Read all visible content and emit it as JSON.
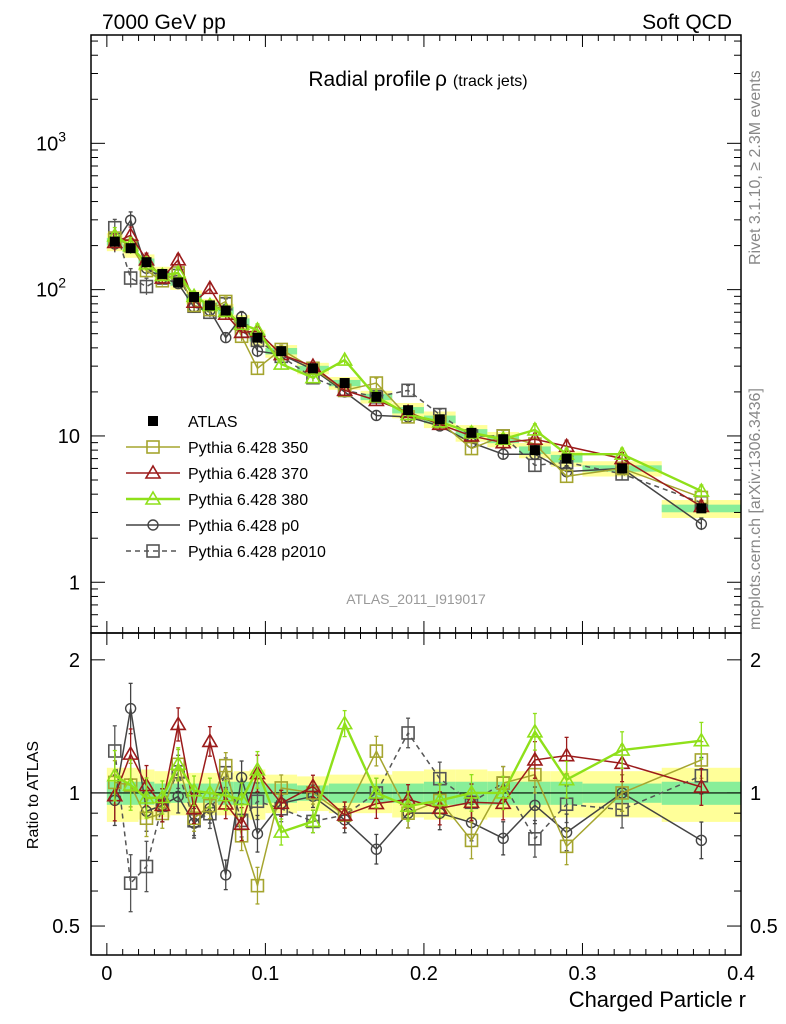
{
  "header": {
    "left": "7000 GeV pp",
    "right": "Soft QCD"
  },
  "side_labels": {
    "rivet": "Rivet 3.1.10, ≥ 2.3M events",
    "site": "mcplots.cern.ch [arXiv:1306.3436]"
  },
  "chart_data": {
    "type": "line",
    "title_main": "Radial profile",
    "title_symbol": "ρ",
    "title_sub": "(track jets)",
    "analysis_label": "ATLAS_2011_I919017",
    "xlabel": "Charged Particle r",
    "ylabel_ratio": "Ratio to ATLAS",
    "xlim": [
      -0.01,
      0.4
    ],
    "ylim_main": [
      0.45,
      5500
    ],
    "yscale_main": "log",
    "ylim_ratio": [
      0.43,
      2.3
    ],
    "yscale_ratio": "log",
    "x_ticks": [
      {
        "value": 0,
        "label": "0"
      },
      {
        "value": 0.1,
        "label": "0.1"
      },
      {
        "value": 0.2,
        "label": "0.2"
      },
      {
        "value": 0.3,
        "label": "0.3"
      },
      {
        "value": 0.4,
        "label": "0.4"
      }
    ],
    "y_ticks_main": [
      {
        "value": 1,
        "label": "1"
      },
      {
        "value": 10,
        "label": "10"
      },
      {
        "value": 100,
        "label": "10",
        "exp": "2"
      },
      {
        "value": 1000,
        "label": "10",
        "exp": "3"
      }
    ],
    "y_ticks_ratio": [
      {
        "value": 0.5,
        "label": "0.5"
      },
      {
        "value": 1,
        "label": "1"
      },
      {
        "value": 2,
        "label": "2"
      }
    ],
    "legend_position": "center-left",
    "x": [
      0.005,
      0.015,
      0.025,
      0.035,
      0.045,
      0.055,
      0.065,
      0.075,
      0.085,
      0.095,
      0.11,
      0.13,
      0.15,
      0.17,
      0.19,
      0.21,
      0.23,
      0.25,
      0.27,
      0.29,
      0.325,
      0.375
    ],
    "bin_edges": [
      0,
      0.01,
      0.02,
      0.03,
      0.04,
      0.05,
      0.06,
      0.07,
      0.08,
      0.09,
      0.1,
      0.12,
      0.14,
      0.16,
      0.18,
      0.2,
      0.22,
      0.24,
      0.26,
      0.28,
      0.3,
      0.35,
      0.4
    ],
    "band_inner": [
      0.06,
      0.06,
      0.06,
      0.05,
      0.05,
      0.05,
      0.05,
      0.06,
      0.06,
      0.06,
      0.05,
      0.04,
      0.05,
      0.05,
      0.05,
      0.06,
      0.06,
      0.06,
      0.06,
      0.06,
      0.05,
      0.06
    ],
    "band_outer": [
      0.14,
      0.14,
      0.13,
      0.12,
      0.11,
      0.11,
      0.11,
      0.11,
      0.12,
      0.13,
      0.1,
      0.09,
      0.1,
      0.1,
      0.12,
      0.13,
      0.13,
      0.12,
      0.12,
      0.12,
      0.12,
      0.14
    ],
    "series": [
      {
        "name": "ATLAS",
        "color": "#000000",
        "marker": "filled-square",
        "line": "none",
        "values": [
          213,
          192,
          154,
          128,
          112,
          89,
          78,
          72,
          60,
          47,
          38,
          29,
          23,
          18.5,
          15,
          13,
          10.5,
          9.5,
          8,
          7,
          6,
          3.2
        ]
      },
      {
        "name": "Pythia 6.428 350",
        "color": "#a5a52f",
        "marker": "open-square",
        "line": "solid",
        "values": [
          225,
          200,
          135,
          115,
          130,
          78,
          73,
          83,
          48,
          29,
          39,
          29,
          20.5,
          23,
          13.5,
          12.5,
          8.2,
          10,
          8.8,
          5.3,
          6,
          3.8
        ],
        "errors": [
          0.12,
          0.12,
          0.1,
          0.08,
          0.08,
          0.07,
          0.07,
          0.07,
          0.08,
          0.1,
          0.07,
          0.06,
          0.07,
          0.08,
          0.08,
          0.09,
          0.1,
          0.09,
          0.1,
          0.1,
          0.1,
          0.1
        ]
      },
      {
        "name": "Pythia 6.428 370",
        "color": "#9b1b1b",
        "marker": "open-triangle",
        "line": "solid",
        "values": [
          210,
          235,
          160,
          120,
          160,
          82,
          102,
          68,
          51,
          52,
          36,
          30,
          20.5,
          17.5,
          14.5,
          12,
          10,
          9,
          9.5,
          8.5,
          7,
          3.3
        ],
        "errors": [
          0.14,
          0.14,
          0.11,
          0.09,
          0.09,
          0.08,
          0.08,
          0.08,
          0.09,
          0.1,
          0.07,
          0.06,
          0.07,
          0.08,
          0.08,
          0.09,
          0.1,
          0.09,
          0.1,
          0.1,
          0.1,
          0.1
        ]
      },
      {
        "name": "Pythia 6.428 380",
        "color": "#8fe01a",
        "marker": "open-triangle",
        "line": "solid",
        "values": [
          233,
          200,
          150,
          125,
          130,
          90,
          78,
          71,
          58,
          53,
          31,
          25,
          33,
          18.5,
          14,
          12.5,
          10.5,
          9.5,
          11,
          7.5,
          7.5,
          4.2
        ],
        "errors": [
          0.14,
          0.14,
          0.11,
          0.09,
          0.09,
          0.08,
          0.08,
          0.08,
          0.09,
          0.1,
          0.07,
          0.06,
          0.07,
          0.08,
          0.08,
          0.09,
          0.1,
          0.09,
          0.1,
          0.1,
          0.1,
          0.1
        ]
      },
      {
        "name": "Pythia 6.428 p0",
        "color": "#444444",
        "marker": "open-circle",
        "line": "solid",
        "values": [
          205,
          298,
          140,
          120,
          110,
          76,
          72,
          47,
          65,
          38,
          36,
          28.5,
          20,
          13.8,
          13.5,
          11.7,
          9,
          7.5,
          7.5,
          5.7,
          6,
          2.5
        ],
        "errors": [
          0.14,
          0.14,
          0.11,
          0.09,
          0.09,
          0.08,
          0.08,
          0.08,
          0.09,
          0.1,
          0.07,
          0.06,
          0.07,
          0.08,
          0.08,
          0.09,
          0.1,
          0.09,
          0.1,
          0.1,
          0.1,
          0.1
        ]
      },
      {
        "name": "Pythia 6.428 p2010",
        "color": "#555555",
        "marker": "open-square",
        "line": "dashed",
        "values": [
          265,
          120,
          105,
          120,
          125,
          77,
          70,
          80,
          52,
          45,
          35,
          25,
          20.5,
          18.5,
          20.5,
          14,
          10,
          10,
          6.3,
          6.6,
          5.5,
          3.5
        ],
        "errors": [
          0.14,
          0.16,
          0.14,
          0.09,
          0.09,
          0.08,
          0.08,
          0.08,
          0.09,
          0.1,
          0.07,
          0.06,
          0.07,
          0.08,
          0.08,
          0.09,
          0.1,
          0.09,
          0.1,
          0.1,
          0.1,
          0.1
        ]
      }
    ]
  }
}
